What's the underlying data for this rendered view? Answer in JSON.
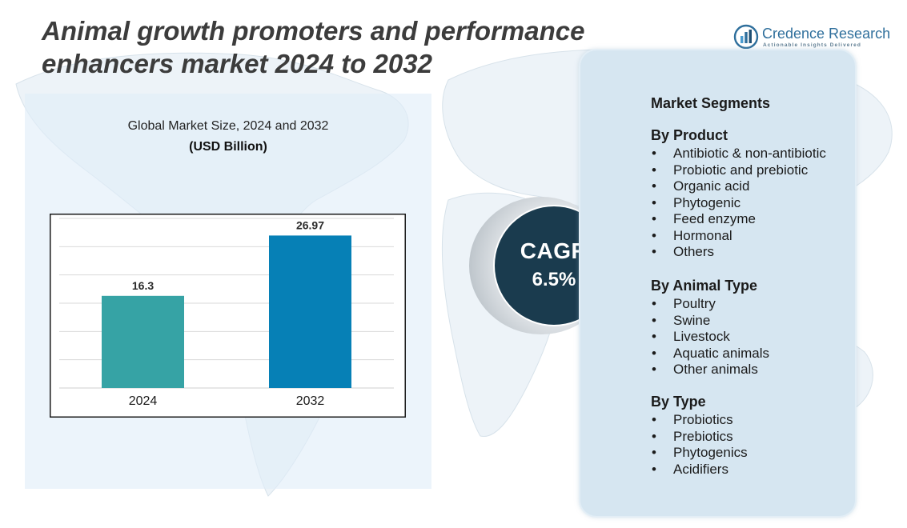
{
  "title_lines": [
    "Animal growth promoters and performance",
    "enhancers market 2024  to 2032"
  ],
  "brand": {
    "name": "Credence Research",
    "tagline": "Actionable Insights Delivered",
    "icon": "bar-chart-logo-icon",
    "color": "#2f6f9c"
  },
  "chart_data": {
    "type": "bar",
    "title": "Global Market Size, 2024 and 2032",
    "unit": "(USD Billion)",
    "categories": [
      "2024",
      "2032"
    ],
    "values": [
      16.3,
      26.97
    ],
    "value_labels": [
      "16.3",
      "26.97"
    ],
    "colors": [
      "#36a3a5",
      "#0680b6"
    ],
    "ylim": [
      0,
      30
    ],
    "grid": true,
    "legend": "none",
    "xlabel": "",
    "ylabel": ""
  },
  "cagr": {
    "label": "CAGR",
    "value": "6.5%"
  },
  "segments": {
    "title": "Market Segments",
    "groups": [
      {
        "name": "By Product",
        "items": [
          "Antibiotic & non-antibiotic",
          "Probiotic and prebiotic",
          "Organic acid",
          "Phytogenic",
          "Feed enzyme",
          "Hormonal",
          "Others"
        ]
      },
      {
        "name": "By Animal Type",
        "items": [
          "Poultry",
          "Swine",
          "Livestock",
          "Aquatic animals",
          "Other animals"
        ]
      },
      {
        "name": "By Type",
        "items": [
          "Probiotics",
          "Prebiotics",
          "Phytogenics",
          "Acidifiers"
        ]
      }
    ]
  }
}
